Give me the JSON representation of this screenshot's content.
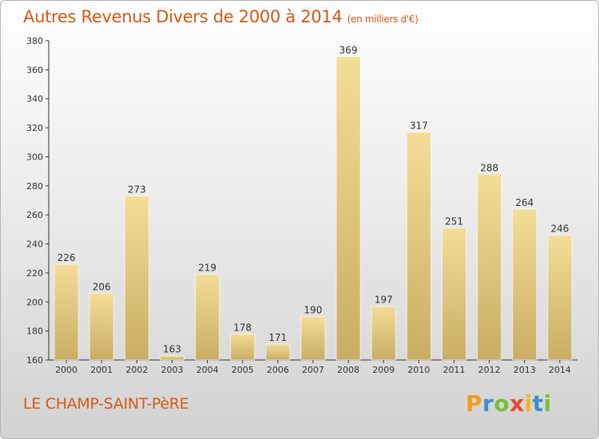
{
  "header": {
    "title": "Autres Revenus Divers de 2000 à 2014",
    "unit": "(en milliers d'€)"
  },
  "footer": {
    "commune": "LE CHAMP-SAINT-PèRE",
    "logo": [
      "P",
      "r",
      "o",
      "x",
      "i",
      "t",
      "i"
    ]
  },
  "colors": {
    "title": "#d85a14",
    "bar_top": "#f4dd97",
    "bar_bottom": "#c9ad63",
    "logo_letters": [
      "#f39a1c",
      "#3a8fd0",
      "#7bbf3a",
      "#e8472b",
      "#f3b51c",
      "#3a8fd0",
      "#7bbf3a"
    ]
  },
  "chart_data": {
    "type": "bar",
    "title": "Autres Revenus Divers de 2000 à 2014",
    "categories": [
      "2000",
      "2001",
      "2002",
      "2003",
      "2004",
      "2005",
      "2006",
      "2007",
      "2008",
      "2009",
      "2010",
      "2011",
      "2012",
      "2013",
      "2014"
    ],
    "values": [
      226,
      206,
      273,
      163,
      219,
      178,
      171,
      190,
      369,
      197,
      317,
      251,
      288,
      264,
      246
    ],
    "ylim": [
      160,
      380
    ],
    "yticks": [
      160,
      180,
      200,
      220,
      240,
      260,
      280,
      300,
      320,
      340,
      360,
      380
    ],
    "grid": false,
    "legend": "none"
  }
}
